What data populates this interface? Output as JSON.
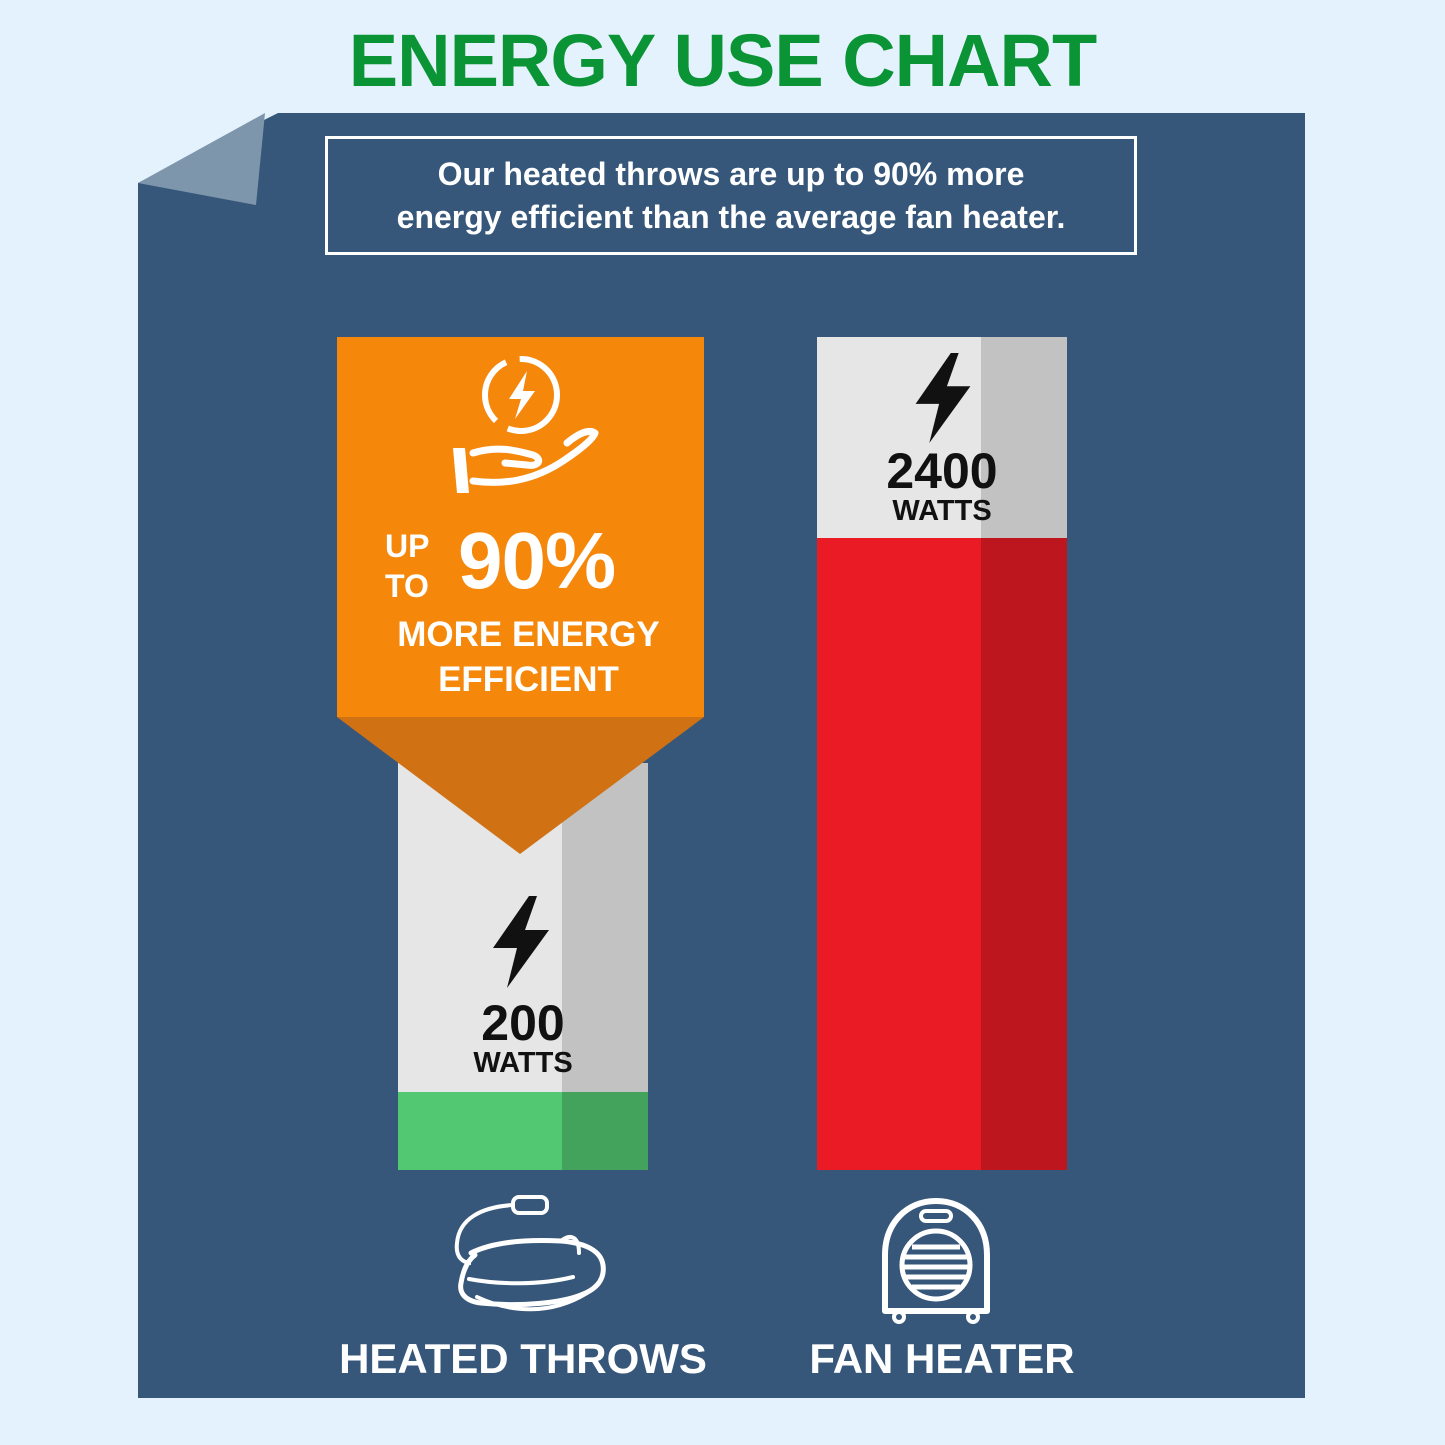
{
  "title": "ENERGY USE CHART",
  "banner": {
    "line1": "Our heated throws are up to 90% more",
    "line2": "energy efficient than the average fan heater."
  },
  "badge": {
    "up": "UP",
    "to": "TO",
    "percent": "90%",
    "line1": "MORE ENERGY",
    "line2": "EFFICIENT",
    "icon": "energy-saving-hand-icon",
    "color": "#f5870b"
  },
  "colors": {
    "background": "#e4f2fd",
    "board": "#36577a",
    "title": "#0a9435",
    "throws_bar": "#52c873",
    "heater_bar": "#ea1b25",
    "empty_bar": "#e6e6e6"
  },
  "chart_data": {
    "type": "bar",
    "categories": [
      "HEATED THROWS",
      "FAN HEATER"
    ],
    "values": [
      200,
      2400
    ],
    "unit": "WATTS",
    "icons": [
      "heated-throw-icon",
      "fan-heater-icon"
    ]
  },
  "bars": [
    {
      "value": "200",
      "unit": "WATTS",
      "label": "HEATED THROWS"
    },
    {
      "value": "2400",
      "unit": "WATTS",
      "label": "FAN HEATER"
    }
  ]
}
